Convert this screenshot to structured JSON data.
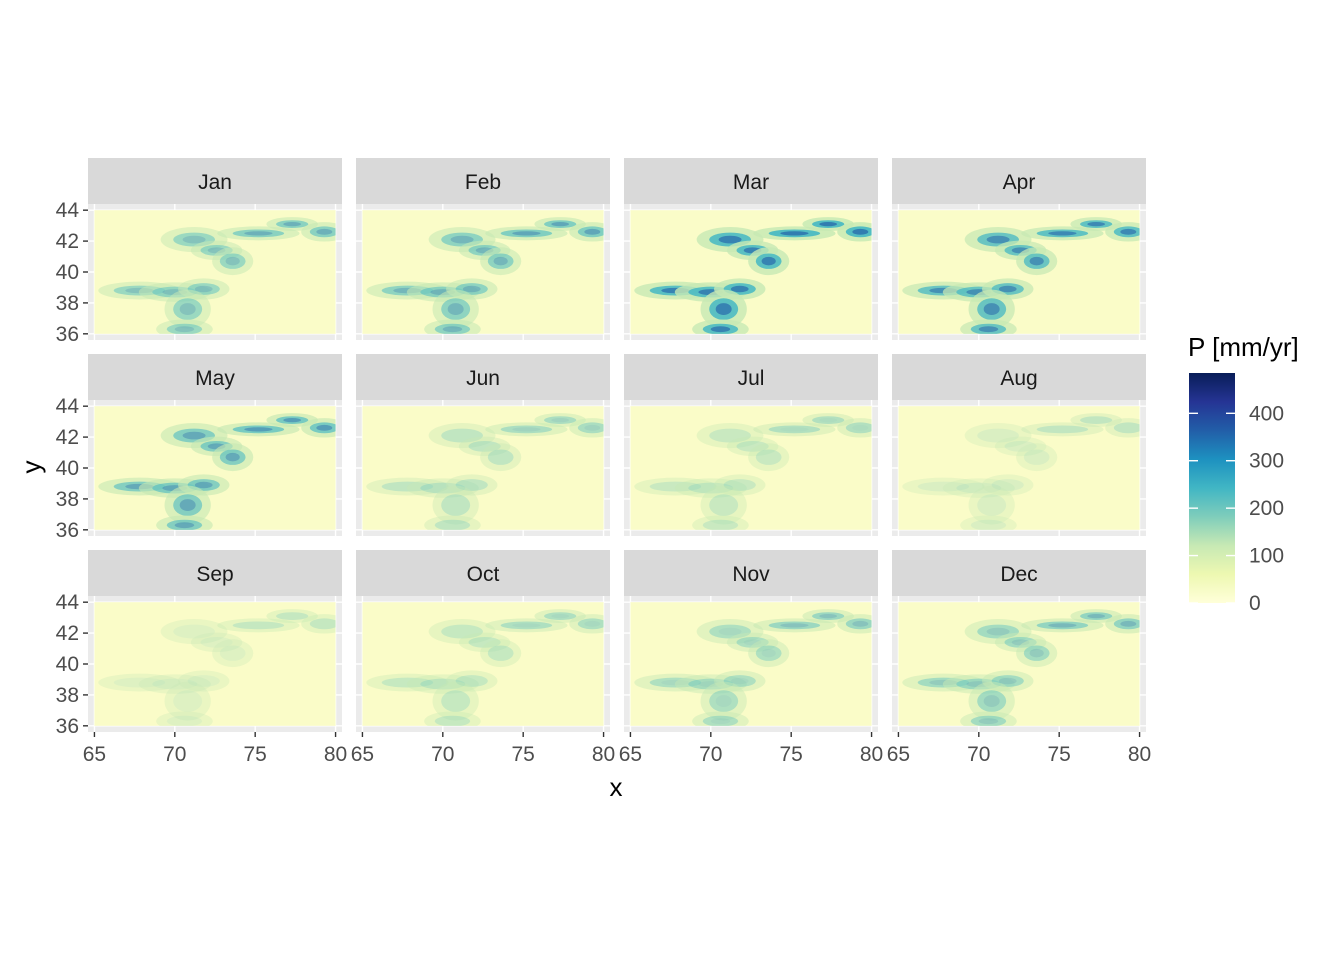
{
  "chart_data": {
    "type": "heatmap",
    "title": "",
    "xlabel": "x",
    "ylabel": "y",
    "xlim": [
      64.6,
      80.4
    ],
    "ylim": [
      35.6,
      44.4
    ],
    "x_ticks": [
      65,
      70,
      75,
      80
    ],
    "y_ticks": [
      36,
      38,
      40,
      42,
      44
    ],
    "grid": true,
    "facets": [
      {
        "label": "Jan",
        "intensity": 0.48
      },
      {
        "label": "Feb",
        "intensity": 0.55
      },
      {
        "label": "Mar",
        "intensity": 0.92
      },
      {
        "label": "Apr",
        "intensity": 0.8
      },
      {
        "label": "May",
        "intensity": 0.62
      },
      {
        "label": "Jun",
        "intensity": 0.25
      },
      {
        "label": "Jul",
        "intensity": 0.2
      },
      {
        "label": "Aug",
        "intensity": 0.1
      },
      {
        "label": "Sep",
        "intensity": 0.08
      },
      {
        "label": "Oct",
        "intensity": 0.22
      },
      {
        "label": "Nov",
        "intensity": 0.35
      },
      {
        "label": "Dec",
        "intensity": 0.42
      }
    ],
    "legend": {
      "title": "P [mm/yr]",
      "placement": "right",
      "min": 0,
      "max": 485,
      "breaks": [
        0,
        100,
        200,
        300,
        400
      ],
      "colors": [
        "#ffffd9",
        "#edf8b1",
        "#c7e9b4",
        "#7fcdbb",
        "#41b6c4",
        "#1d91c0",
        "#225ea8",
        "#253494",
        "#081d58"
      ]
    }
  }
}
